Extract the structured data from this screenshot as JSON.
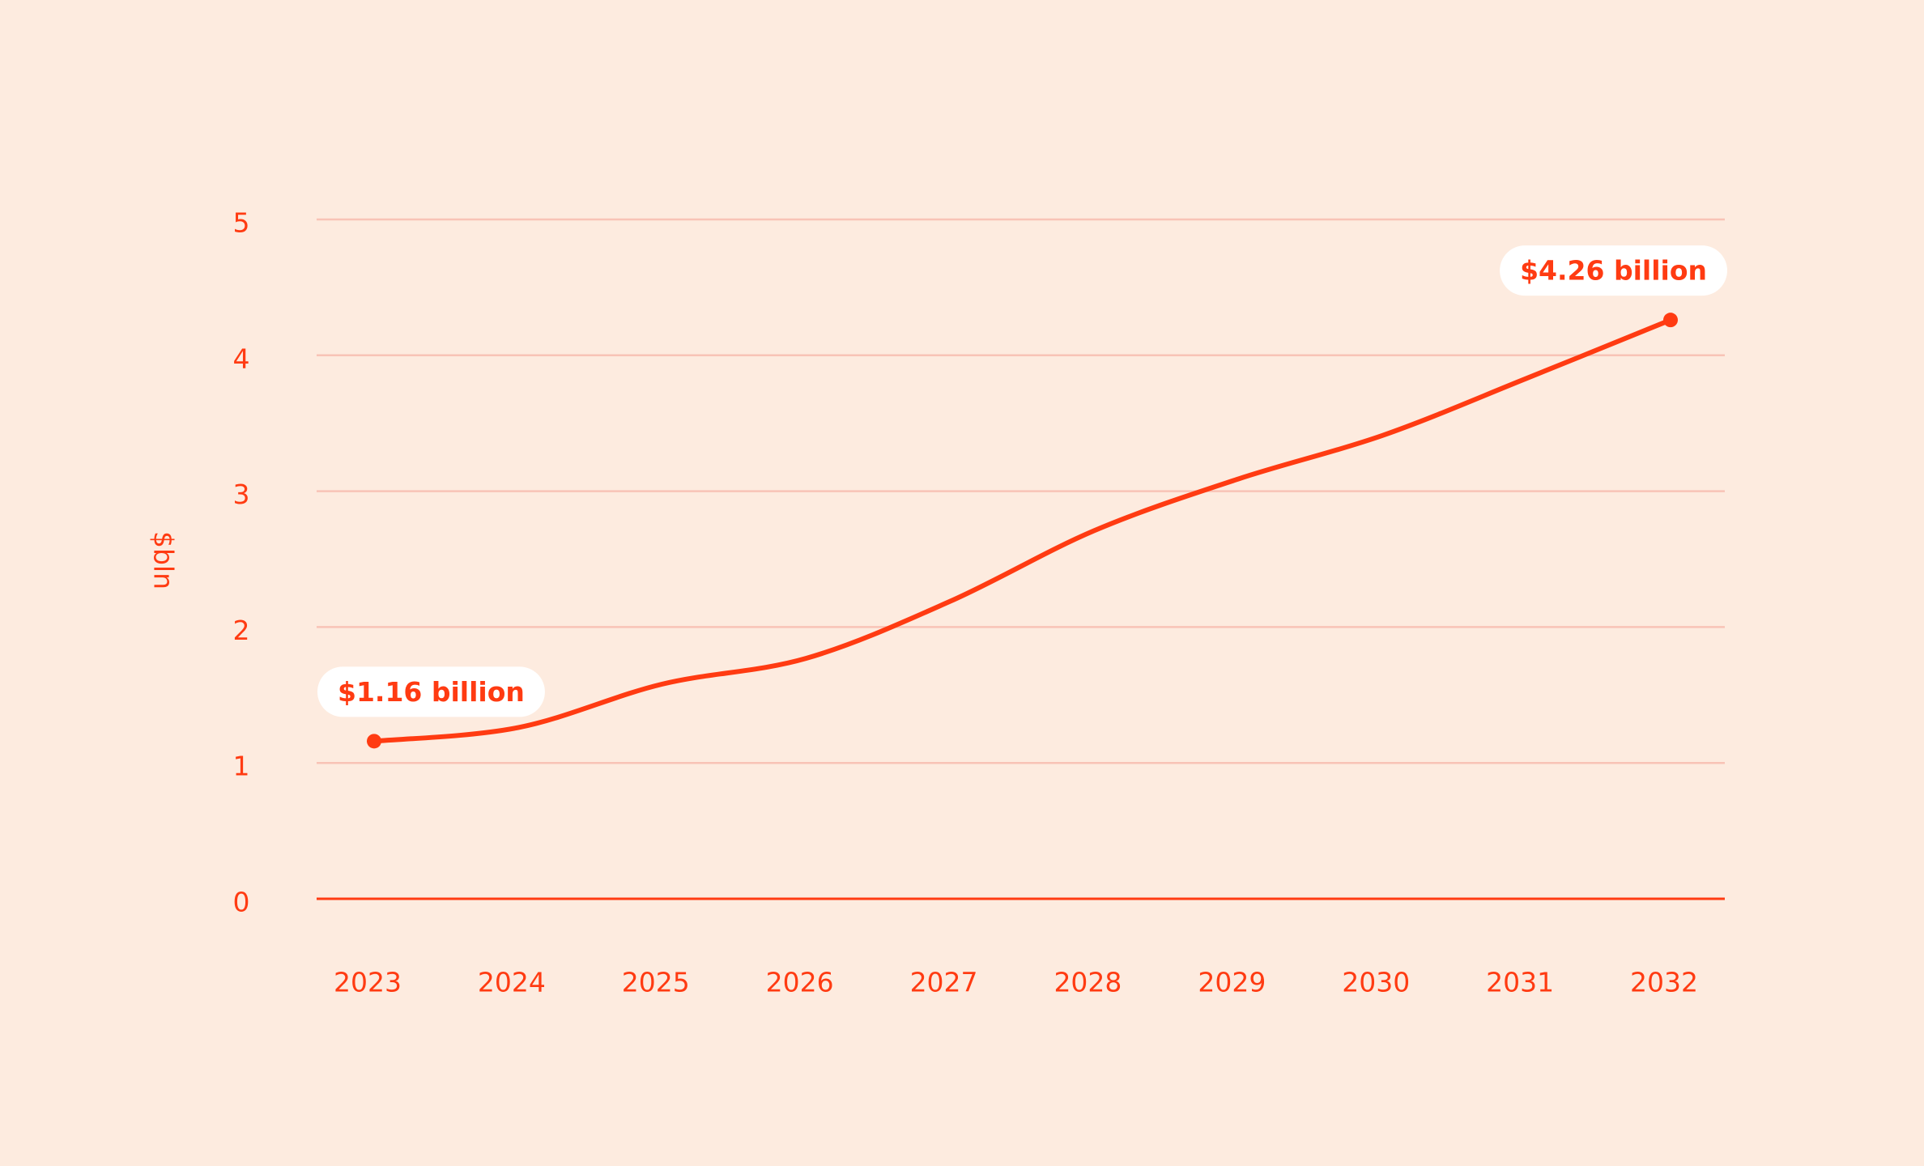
{
  "chart_data": {
    "type": "line",
    "y_label": "$bln",
    "categories": [
      "2023",
      "2024",
      "2025",
      "2026",
      "2027",
      "2028",
      "2029",
      "2030",
      "2031",
      "2032"
    ],
    "values": [
      1.16,
      1.26,
      1.58,
      1.77,
      2.19,
      2.71,
      3.09,
      3.41,
      3.83,
      4.26
    ],
    "value_labels": [
      "$1.16 billion",
      null,
      null,
      null,
      null,
      null,
      null,
      null,
      null,
      "$4.26 billion"
    ],
    "color": "#ff3b12",
    "ylim": [
      0,
      5
    ],
    "yticks": [
      0,
      1,
      2,
      3,
      4,
      5
    ],
    "grid": true
  }
}
